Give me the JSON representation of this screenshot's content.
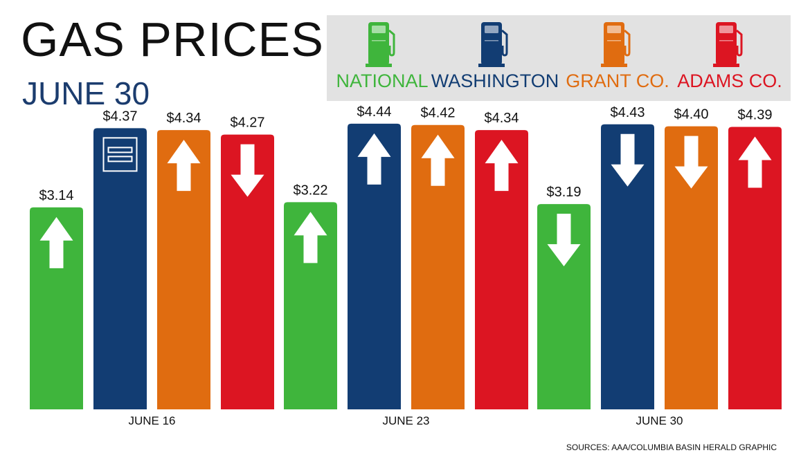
{
  "header": {
    "title": "GAS PRICES",
    "subtitle": "JUNE 30"
  },
  "legend": [
    {
      "label": "NATIONAL",
      "color": "#3fb53c",
      "icon": "gas-pump-icon"
    },
    {
      "label": "WASHINGTON",
      "color": "#123d73",
      "icon": "gas-pump-icon"
    },
    {
      "label": "GRANT CO.",
      "color": "#e06c10",
      "icon": "gas-pump-icon"
    },
    {
      "label": "ADAMS CO.",
      "color": "#dc1522",
      "icon": "gas-pump-icon"
    }
  ],
  "chart_data": {
    "type": "bar",
    "categories": [
      "JUNE 16",
      "JUNE 23",
      "JUNE 30"
    ],
    "series": [
      {
        "name": "NATIONAL",
        "color": "#3fb53c",
        "values": [
          3.14,
          3.22,
          3.19
        ],
        "labels": [
          "$3.14",
          "$3.22",
          "$3.19"
        ],
        "trend": [
          "up",
          "up",
          "down"
        ]
      },
      {
        "name": "WASHINGTON",
        "color": "#123d73",
        "values": [
          4.37,
          4.44,
          4.43
        ],
        "labels": [
          "$4.37",
          "$4.44",
          "$4.43"
        ],
        "trend": [
          "equal",
          "up",
          "down"
        ]
      },
      {
        "name": "GRANT CO.",
        "color": "#e06c10",
        "values": [
          4.34,
          4.42,
          4.4
        ],
        "labels": [
          "$4.34",
          "$4.42",
          "$4.40"
        ],
        "trend": [
          "up",
          "up",
          "down"
        ]
      },
      {
        "name": "ADAMS CO.",
        "color": "#dc1522",
        "values": [
          4.27,
          4.34,
          4.39
        ],
        "labels": [
          "$4.27",
          "$4.34",
          "$4.39"
        ],
        "trend": [
          "down",
          "up",
          "up"
        ]
      }
    ],
    "ylim": [
      0,
      4.75
    ],
    "grid": false,
    "legend_position": "top-right"
  },
  "footer": {
    "source": "SOURCES: AAA/COLUMBIA BASIN HERALD GRAPHIC"
  }
}
